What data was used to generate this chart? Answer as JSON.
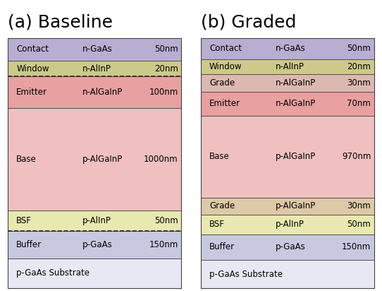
{
  "title_a": "(a) Baseline",
  "title_b": "(b) Graded",
  "title_fontsize": 18,
  "fig_bg": "#ffffff",
  "panel_a": {
    "layers": [
      {
        "label": "Contact",
        "material": "n-GaAs",
        "thickness": "50nm",
        "color": "#b8aed2"
      },
      {
        "label": "Window",
        "material": "n-AlInP",
        "thickness": "20nm",
        "color": "#cdc98a"
      },
      {
        "label": "Emitter",
        "material": "n-AlGaInP",
        "thickness": "100nm",
        "color": "#e8a0a0"
      },
      {
        "label": "Base",
        "material": "p-AlGaInP",
        "thickness": "1000nm",
        "color": "#f0c0c0"
      },
      {
        "label": "BSF",
        "material": "p-AlInP",
        "thickness": "50nm",
        "color": "#e8e8b0"
      },
      {
        "label": "Buffer",
        "material": "p-GaAs",
        "thickness": "150nm",
        "color": "#c8c8e0"
      },
      {
        "label": "p-GaAs Substrate",
        "material": "",
        "thickness": "",
        "color": "#e8e8f4"
      }
    ],
    "dashed_after": [
      1,
      4
    ],
    "heights": [
      1.0,
      0.7,
      1.4,
      4.5,
      0.9,
      1.2,
      1.3
    ]
  },
  "panel_b": {
    "layers": [
      {
        "label": "Contact",
        "material": "n-GaAs",
        "thickness": "50nm",
        "color": "#b8aed2"
      },
      {
        "label": "Window",
        "material": "n-AlInP",
        "thickness": "20nm",
        "color": "#cdc98a"
      },
      {
        "label": "Grade",
        "material": "n-AlGaInP",
        "thickness": "30nm",
        "color": "#ddb8b0"
      },
      {
        "label": "Emitter",
        "material": "n-AlGaInP",
        "thickness": "70nm",
        "color": "#e8a0a0"
      },
      {
        "label": "Base",
        "material": "p-AlGaInP",
        "thickness": "970nm",
        "color": "#f0c0c0"
      },
      {
        "label": "Grade",
        "material": "p-AlGaInP",
        "thickness": "30nm",
        "color": "#ddc8a8"
      },
      {
        "label": "BSF",
        "material": "p-AlInP",
        "thickness": "50nm",
        "color": "#e8e8b0"
      },
      {
        "label": "Buffer",
        "material": "p-GaAs",
        "thickness": "150nm",
        "color": "#c8c8e0"
      },
      {
        "label": "p-GaAs Substrate",
        "material": "",
        "thickness": "",
        "color": "#e8e8f4"
      }
    ],
    "heights": [
      1.0,
      0.7,
      0.8,
      1.1,
      3.8,
      0.8,
      0.9,
      1.2,
      1.3
    ]
  },
  "text_fontsize": 8.5,
  "outline_color": "#444444",
  "dashed_color": "#222222"
}
